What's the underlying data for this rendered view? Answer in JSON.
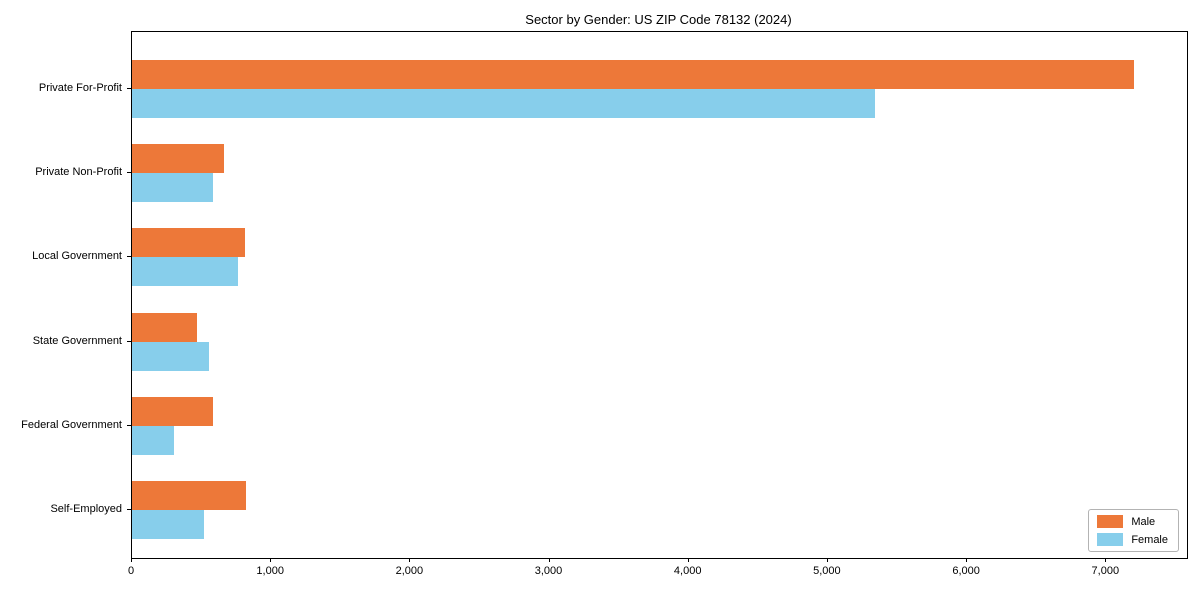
{
  "chart_data": {
    "type": "bar",
    "orientation": "horizontal",
    "title": "Sector by Gender: US ZIP Code 78132 (2024)",
    "categories": [
      "Private For-Profit",
      "Private Non-Profit",
      "Local Government",
      "State Government",
      "Federal Government",
      "Self-Employed"
    ],
    "series": [
      {
        "name": "Male",
        "color": "#ED7839",
        "values": [
          7200,
          660,
          810,
          470,
          580,
          820
        ]
      },
      {
        "name": "Female",
        "color": "#87CEEB",
        "values": [
          5340,
          580,
          760,
          550,
          300,
          520
        ]
      }
    ],
    "xlabel": "",
    "ylabel": "",
    "xlim": [
      0,
      7580
    ],
    "xticks": [
      0,
      1000,
      2000,
      3000,
      4000,
      5000,
      6000,
      7000
    ],
    "xtick_labels": [
      "0",
      "1,000",
      "2,000",
      "3,000",
      "4,000",
      "5,000",
      "6,000",
      "7,000"
    ],
    "grid": false,
    "legend_position": "lower right"
  }
}
